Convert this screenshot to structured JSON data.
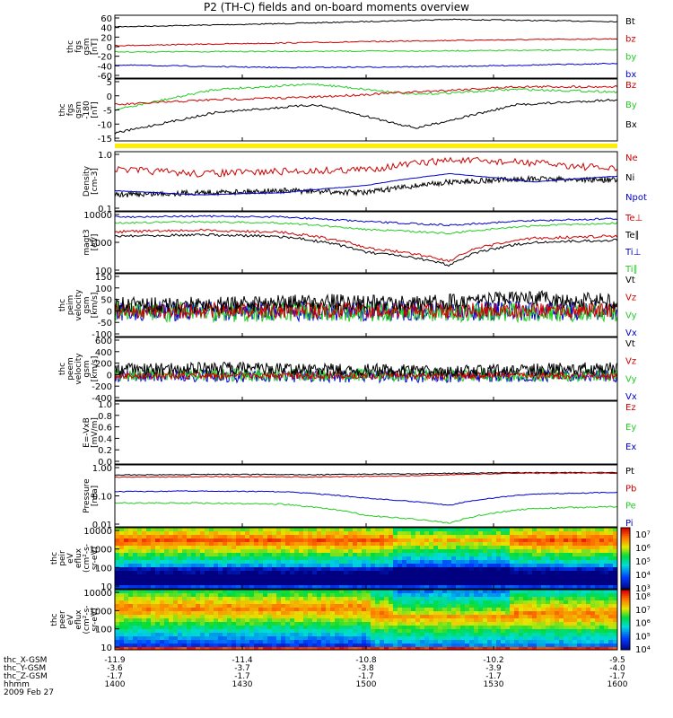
{
  "title": "P2 (TH-C) fields and on-board moments overview",
  "colors": {
    "black": "#000000",
    "red": "#cc0000",
    "green": "#22cc22",
    "blue": "#0000cc",
    "yellow": "#ffee00"
  },
  "chart_data": [
    {
      "type": "line",
      "ylabel": [
        "thc",
        "fgs",
        "gsm",
        "[nT]"
      ],
      "ylim": [
        -60,
        60
      ],
      "yticks": [
        "60",
        "40",
        "20",
        "0",
        "-20",
        "-40",
        "-60"
      ],
      "legend": [
        {
          "name": "Bt",
          "color": "#000000"
        },
        {
          "name": "bz",
          "color": "#cc0000"
        },
        {
          "name": "by",
          "color": "#22cc22"
        },
        {
          "name": "bx",
          "color": "#0000cc"
        }
      ],
      "series": [
        {
          "name": "Bt",
          "level": [
            38,
            44,
            52,
            48
          ]
        },
        {
          "name": "bz",
          "level": [
            2,
            7,
            12,
            15
          ]
        },
        {
          "name": "by",
          "level": [
            -10,
            -9,
            -8,
            -6
          ]
        },
        {
          "name": "bx",
          "level": [
            -35,
            -40,
            -38,
            -32
          ]
        }
      ]
    },
    {
      "type": "line",
      "ylabel": [
        "thc",
        "fgs",
        "gsm",
        "-180",
        "[nT]"
      ],
      "ylim": [
        -17,
        7
      ],
      "yticks": [
        "5",
        "0",
        "-5",
        "-10",
        "-15"
      ],
      "legend": [
        {
          "name": "Bz",
          "color": "#cc0000"
        },
        {
          "name": "By",
          "color": "#22cc22"
        },
        {
          "name": "Bx",
          "color": "#000000"
        }
      ],
      "series": [
        {
          "name": "By",
          "level": [
            -5,
            3,
            5,
            1,
            3,
            2
          ]
        },
        {
          "name": "Bz",
          "level": [
            -3,
            -1,
            0,
            2,
            4,
            4
          ]
        },
        {
          "name": "Bx",
          "level": [
            -14,
            -6,
            -3,
            -12,
            -3,
            -1
          ]
        }
      ]
    },
    {
      "type": "line",
      "ylabel": [
        "Density",
        "[cm-3]"
      ],
      "yscale": "log",
      "ylim": [
        0.1,
        1.3
      ],
      "yticks": [
        "1.0",
        "0.1"
      ],
      "legend": [
        {
          "name": "Ne",
          "color": "#cc0000"
        },
        {
          "name": "Ni",
          "color": "#000000"
        },
        {
          "name": "Npot",
          "color": "#0000cc"
        }
      ]
    },
    {
      "type": "line",
      "ylabel": [
        "magt3",
        "[eV]"
      ],
      "yscale": "log",
      "ylim": [
        100,
        12000
      ],
      "yticks": [
        "10000",
        "1000",
        "100"
      ],
      "legend": [
        {
          "name": "Te⊥",
          "color": "#cc0000"
        },
        {
          "name": "Te∥",
          "color": "#000000"
        },
        {
          "name": "Ti⊥",
          "color": "#0000cc"
        },
        {
          "name": "Ti∥",
          "color": "#22cc22"
        }
      ]
    },
    {
      "type": "line",
      "ylabel": [
        "thc",
        "peim",
        "velocity",
        "gsm",
        "[km/s]"
      ],
      "ylim": [
        -110,
        160
      ],
      "yticks": [
        "150",
        "100",
        "50",
        "0",
        "-50",
        "-100"
      ],
      "legend": [
        {
          "name": "Vt",
          "color": "#000000"
        },
        {
          "name": "Vz",
          "color": "#cc0000"
        },
        {
          "name": "Vy",
          "color": "#22cc22"
        },
        {
          "name": "Vx",
          "color": "#0000cc"
        }
      ]
    },
    {
      "type": "line",
      "ylabel": [
        "thc",
        "peem",
        "velocity",
        "gsm",
        "[km/s]"
      ],
      "ylim": [
        -420,
        620
      ],
      "yticks": [
        "600",
        "400",
        "200",
        "0",
        "-200",
        "-400"
      ],
      "legend": [
        {
          "name": "Vt",
          "color": "#000000"
        },
        {
          "name": "Vz",
          "color": "#cc0000"
        },
        {
          "name": "Vy",
          "color": "#22cc22"
        },
        {
          "name": "Vx",
          "color": "#0000cc"
        }
      ]
    },
    {
      "type": "line",
      "ylabel": [
        "E=-VxB",
        "[mV/m]"
      ],
      "ylim": [
        0,
        1
      ],
      "yticks": [
        "1.0",
        "0.8",
        "0.6",
        "0.4",
        "0.2",
        "0.0"
      ],
      "legend": [
        {
          "name": "Ez",
          "color": "#cc0000"
        },
        {
          "name": "Ey",
          "color": "#22cc22"
        },
        {
          "name": "Ex",
          "color": "#0000cc"
        }
      ]
    },
    {
      "type": "line",
      "ylabel": [
        "Pressure",
        "[nPa]"
      ],
      "yscale": "log",
      "ylim": [
        0.005,
        2
      ],
      "yticks": [
        "1.00",
        "0.10",
        "0.01"
      ],
      "legend": [
        {
          "name": "Pt",
          "color": "#000000"
        },
        {
          "name": "Pb",
          "color": "#cc0000"
        },
        {
          "name": "Pe",
          "color": "#22cc22"
        },
        {
          "name": "Pi",
          "color": "#0000cc"
        }
      ]
    },
    {
      "type": "heatmap",
      "ylabel": [
        "thc",
        "peir",
        "eV",
        "eflux",
        "(cm²-s-",
        "sr-eV)"
      ],
      "yscale": "log",
      "yticks": [
        "10000",
        "1000",
        "100",
        "10"
      ],
      "colorbar": [
        "10⁷",
        "10⁶",
        "10⁵",
        "10⁴",
        "10³"
      ]
    },
    {
      "type": "heatmap",
      "ylabel": [
        "thc",
        "peer",
        "eV",
        "eflux",
        "(cm²-s-",
        "sr-eV)"
      ],
      "yscale": "log",
      "yticks": [
        "10000",
        "1000",
        "100",
        "10"
      ],
      "colorbar": [
        "10⁸",
        "10⁷",
        "10⁶",
        "10⁵",
        "10⁴"
      ]
    }
  ],
  "xaxis": {
    "rows": [
      {
        "label": "thc_X-GSM",
        "values": [
          "-11.9",
          "-11.4",
          "-10.8",
          "-10.2",
          "-9.5"
        ]
      },
      {
        "label": "thc_Y-GSM",
        "values": [
          "-3.6",
          "-3.7",
          "-3.8",
          "-3.9",
          "-4.0"
        ]
      },
      {
        "label": "thc_Z-GSM",
        "values": [
          "-1.7",
          "-1.7",
          "-1.7",
          "-1.7",
          "-1.7"
        ]
      },
      {
        "label": "hhmm",
        "values": [
          "1400",
          "1430",
          "1500",
          "1530",
          "1600"
        ]
      }
    ],
    "date": "2009 Feb 27"
  }
}
